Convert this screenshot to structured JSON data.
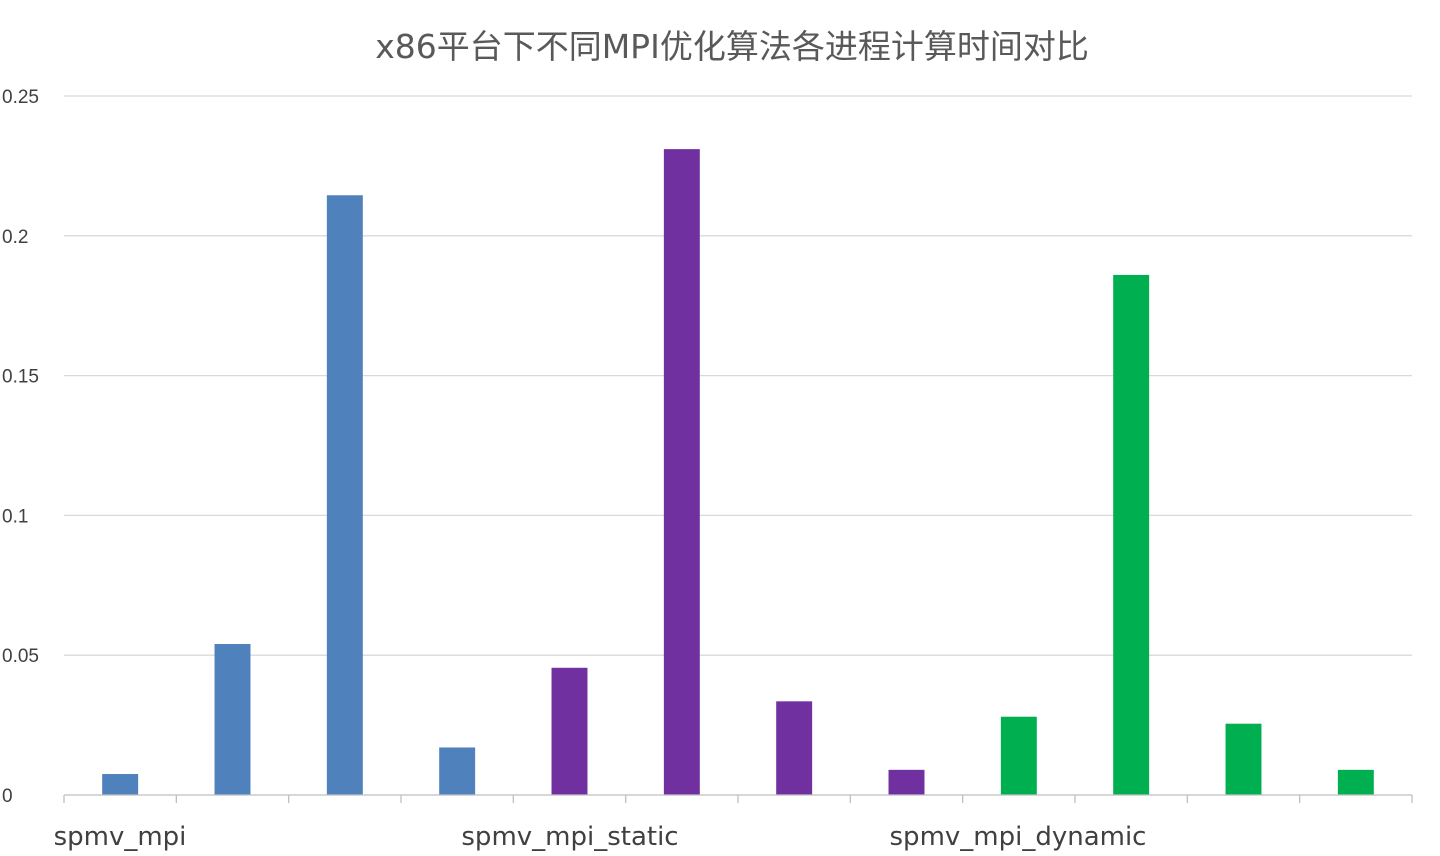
{
  "chart_data": {
    "type": "bar",
    "title": "x86平台下不同MPI优化算法各进程计算时间对比",
    "xlabel": "",
    "ylabel": "",
    "ylim": [
      0,
      0.25
    ],
    "yticks": [
      "0",
      "0.05",
      "0.1",
      "0.15",
      "0.2",
      "0.25"
    ],
    "grid": true,
    "legend": "none",
    "groups": [
      {
        "label": "spmv_mpi",
        "color": "#4F81BD",
        "values": [
          0.0075,
          0.054,
          0.2145,
          0.017
        ]
      },
      {
        "label": "spmv_mpi_static",
        "color": "#7030A0",
        "values": [
          0.0455,
          0.231,
          0.0335,
          0.009
        ]
      },
      {
        "label": "spmv_mpi_dynamic",
        "color": "#00B050",
        "values": [
          0.028,
          0.186,
          0.0255,
          0.009
        ]
      }
    ]
  },
  "colors": {
    "grid": "#D9D9D9",
    "axis": "#BFBFBF",
    "title": "#595959",
    "text": "#404040"
  }
}
